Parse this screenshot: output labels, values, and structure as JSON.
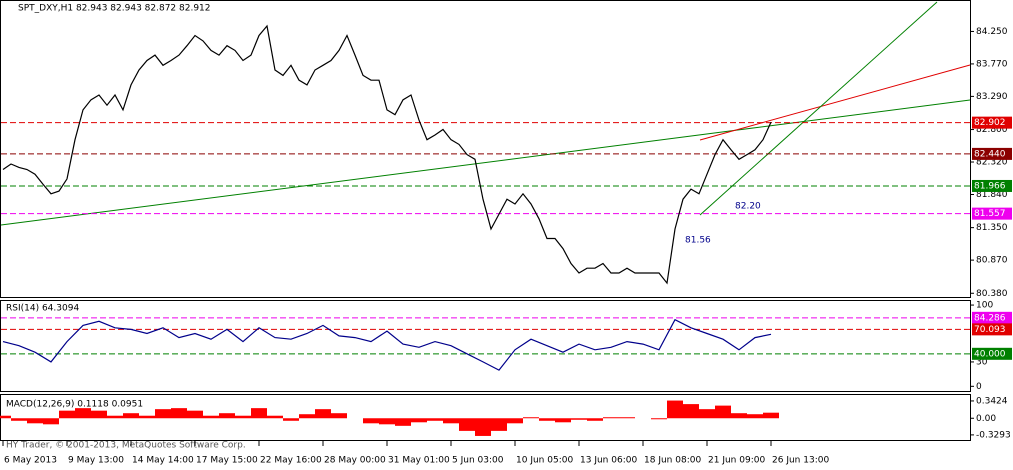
{
  "chart_data": [
    {
      "type": "line",
      "title": "SPT_DXY,H1  82.943 82.943 82.872 82.912",
      "color": "#000000",
      "values": [
        82.21,
        82.29,
        82.24,
        82.21,
        82.14,
        81.99,
        81.85,
        81.89,
        82.07,
        82.65,
        83.09,
        83.24,
        83.31,
        83.16,
        83.31,
        83.09,
        83.46,
        83.68,
        83.82,
        83.9,
        83.75,
        83.82,
        83.9,
        84.04,
        84.19,
        84.11,
        83.97,
        83.9,
        84.04,
        83.97,
        83.82,
        83.9,
        84.19,
        84.33,
        83.68,
        83.6,
        83.75,
        83.53,
        83.46,
        83.68,
        83.75,
        83.82,
        83.97,
        84.19,
        83.9,
        83.6,
        83.53,
        83.53,
        83.09,
        83.02,
        83.24,
        83.31,
        82.94,
        82.65,
        82.72,
        82.8,
        82.65,
        82.58,
        82.43,
        82.36,
        81.77,
        81.33,
        81.55,
        81.77,
        81.7,
        81.85,
        81.7,
        81.48,
        81.19,
        81.19,
        81.04,
        80.82,
        80.68,
        80.75,
        80.75,
        80.82,
        80.68,
        80.68,
        80.75,
        80.68,
        80.68,
        80.68,
        80.68,
        80.53,
        81.33,
        81.77,
        81.92,
        81.85,
        82.14,
        82.43,
        82.65,
        82.5,
        82.36,
        82.43,
        82.5,
        82.65,
        82.91
      ],
      "ylim": [
        80.31,
        84.7
      ],
      "yticks": [
        {
          "value": 84.25,
          "label": "84.250"
        },
        {
          "value": 83.77,
          "label": "83.770"
        },
        {
          "value": 83.29,
          "label": "83.290"
        },
        {
          "value": 82.8,
          "label": "82.800"
        },
        {
          "value": 82.32,
          "label": "82.320"
        },
        {
          "value": 81.84,
          "label": "81.840"
        },
        {
          "value": 81.35,
          "label": "81.350"
        },
        {
          "value": 80.87,
          "label": "80.870"
        },
        {
          "value": 80.38,
          "label": "80.380"
        }
      ],
      "levels": [
        {
          "value": 82.902,
          "color": "#e00000"
        },
        {
          "value": 82.44,
          "label": "82.440",
          "color": "#8b0000"
        },
        {
          "value": 81.966,
          "color": "#008000"
        },
        {
          "value": 81.557,
          "color": "#ee00ee"
        }
      ],
      "annotations": [
        "82.20",
        "81.56"
      ],
      "x_axis_labels": [
        "6 May 2013",
        "9 May 13:00",
        "14 May 14:00",
        "17 May 15:00",
        "22 May 16:00",
        "28 May 00:00",
        "31 May 01:00",
        "5 Jun 03:00",
        "10 Jun 05:00",
        "13 Jun 06:00",
        "18 Jun 08:00",
        "21 Jun 09:00",
        "26 Jun 13:00"
      ]
    },
    {
      "type": "line",
      "title": "RSI(14) 64.3094",
      "color": "#00008b",
      "values": [
        55,
        50,
        42,
        30,
        55,
        75,
        80,
        72,
        70,
        65,
        72,
        60,
        65,
        58,
        70,
        55,
        72,
        60,
        58,
        65,
        75,
        62,
        60,
        55,
        68,
        52,
        48,
        55,
        50,
        40,
        30,
        20,
        45,
        58,
        50,
        42,
        52,
        45,
        48,
        55,
        52,
        45,
        82,
        72,
        65,
        58,
        45,
        60,
        64
      ],
      "ylim": [
        -7,
        105
      ],
      "yticks": [
        100,
        30,
        0
      ],
      "levels": [
        {
          "value": 84.286,
          "color": "#ee00ee"
        },
        {
          "value": 70.093,
          "color": "#e00000"
        },
        {
          "value": 40,
          "label": "40.000",
          "color": "#008000"
        }
      ]
    },
    {
      "type": "bar",
      "title": "MACD(12,26,9) 0.1118 0.0951",
      "color": "#ff0000",
      "values": [
        0.05,
        -0.05,
        -0.1,
        -0.12,
        0.15,
        0.2,
        0.15,
        0.05,
        0.1,
        0.05,
        0.18,
        0.2,
        0.15,
        0.05,
        0.1,
        0.05,
        0.2,
        0.05,
        -0.05,
        0.08,
        0.18,
        0.1,
        0.0,
        -0.1,
        -0.12,
        -0.15,
        -0.08,
        -0.05,
        -0.1,
        -0.25,
        -0.35,
        -0.25,
        -0.1,
        0.02,
        -0.05,
        -0.08,
        -0.03,
        -0.05,
        0.02,
        0.02,
        0.0,
        -0.02,
        0.35,
        0.28,
        0.18,
        0.25,
        0.1,
        0.08,
        0.11
      ],
      "ylim": [
        -0.45,
        0.46
      ],
      "yticks": [
        0.3424,
        {
          "value": 0,
          "label": "0.00"
        },
        -0.3293
      ]
    }
  ],
  "footer": "HY Trader, © 2001-2013, MetaQuotes Software Corp."
}
